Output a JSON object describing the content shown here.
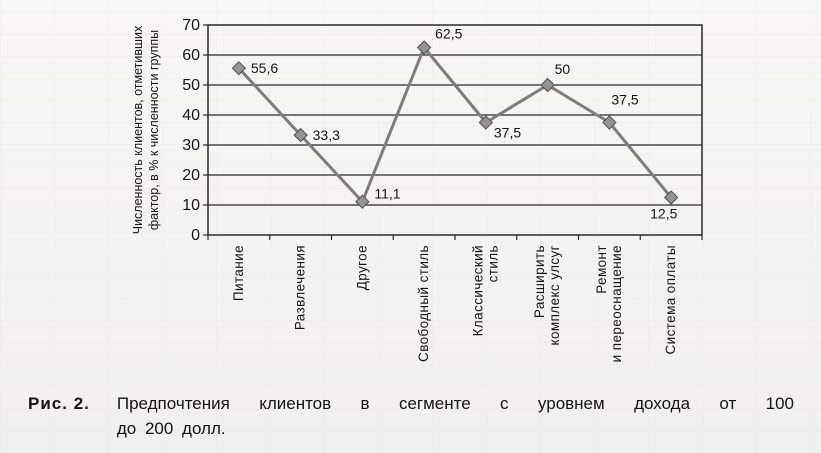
{
  "figure": {
    "caption": {
      "label": "Рис. 2.",
      "line1": "Предпочтения клиентов в сегменте с уровнем дохода от 100",
      "line2": "до 200 долл."
    }
  },
  "chart_data": {
    "type": "line",
    "title": "",
    "ylabel_lines": [
      "Численность клиентов, отметивших",
      "фактор, в % к численности группы"
    ],
    "categories": [
      "Питание",
      "Развлечения",
      "Другое",
      "Свободный стиль",
      "Классический стиль",
      "Расширить комплекс улсуг",
      "Ремонт и переоснащение",
      "Система оплаты"
    ],
    "category_label_lines": [
      [
        "Питание"
      ],
      [
        "Развлечения"
      ],
      [
        "Другое"
      ],
      [
        "Свободный стиль"
      ],
      [
        "Классический",
        "стиль"
      ],
      [
        "Расширить",
        "комплекс улсуг"
      ],
      [
        "Ремонт",
        "и переоснащение"
      ],
      [
        "Система оплаты"
      ]
    ],
    "values": [
      55.6,
      33.3,
      11.1,
      62.5,
      37.5,
      50,
      37.5,
      12.5
    ],
    "point_labels": [
      "55,6",
      "33,3",
      "11,1",
      "62,5",
      "37,5",
      "50",
      "37,5",
      "12,5"
    ],
    "ylim": [
      0,
      70
    ],
    "ytick_step": 10,
    "ytick_labels": [
      "70",
      "60",
      "50",
      "40",
      "30",
      "20",
      "10",
      "0"
    ],
    "grid": true,
    "legend": false,
    "marker": "diamond",
    "colors": {
      "line": "#7d7d7d",
      "marker_fill": "#949494",
      "marker_stroke": "#4f4f4f",
      "axis": "#2b2b2b",
      "text": "#161616"
    }
  }
}
